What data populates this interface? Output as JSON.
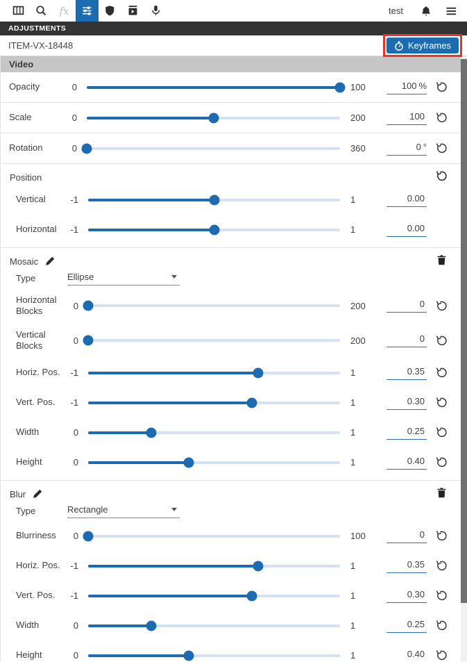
{
  "toolbar": {
    "user_label": "test",
    "effects_glyph": "fx"
  },
  "panel": {
    "title": "ADJUSTMENTS",
    "item_id": "ITEM-VX-18448",
    "keyframes_label": "Keyframes"
  },
  "video": {
    "title": "Video",
    "rows": [
      {
        "label": "Opacity",
        "min": "0",
        "max": "100",
        "value": "100",
        "unit": "%",
        "percent": 100
      },
      {
        "label": "Scale",
        "min": "0",
        "max": "200",
        "value": "100",
        "unit": "",
        "percent": 50
      },
      {
        "label": "Rotation",
        "min": "0",
        "max": "360",
        "value": "0",
        "unit": "°",
        "percent": 0
      }
    ]
  },
  "position": {
    "title": "Position",
    "rows": [
      {
        "label": "Vertical",
        "min": "-1",
        "max": "1",
        "value": "0.00",
        "unit": "",
        "percent": 50
      },
      {
        "label": "Horizontal",
        "min": "-1",
        "max": "1",
        "value": "0.00",
        "unit": "",
        "percent": 50
      }
    ]
  },
  "mosaic": {
    "title": "Mosaic",
    "type_label": "Type",
    "type_value": "Ellipse",
    "rows": [
      {
        "label": "Horizontal Blocks",
        "min": "0",
        "max": "200",
        "value": "0",
        "unit": "",
        "percent": 0
      },
      {
        "label": "Vertical Blocks",
        "min": "0",
        "max": "200",
        "value": "0",
        "unit": "",
        "percent": 0
      },
      {
        "label": "Horiz. Pos.",
        "min": "-1",
        "max": "1",
        "value": "0.35",
        "unit": "",
        "percent": 67.5
      },
      {
        "label": "Vert. Pos.",
        "min": "-1",
        "max": "1",
        "value": "0.30",
        "unit": "",
        "percent": 65
      },
      {
        "label": "Width",
        "min": "0",
        "max": "1",
        "value": "0.25",
        "unit": "",
        "percent": 25
      },
      {
        "label": "Height",
        "min": "0",
        "max": "1",
        "value": "0.40",
        "unit": "",
        "percent": 40
      }
    ]
  },
  "blur": {
    "title": "Blur",
    "type_label": "Type",
    "type_value": "Rectangle",
    "rows": [
      {
        "label": "Blurriness",
        "min": "0",
        "max": "100",
        "value": "0",
        "unit": "",
        "percent": 0
      },
      {
        "label": "Horiz. Pos.",
        "min": "-1",
        "max": "1",
        "value": "0.35",
        "unit": "",
        "percent": 67.5
      },
      {
        "label": "Vert. Pos.",
        "min": "-1",
        "max": "1",
        "value": "0.30",
        "unit": "",
        "percent": 65
      },
      {
        "label": "Width",
        "min": "0",
        "max": "1",
        "value": "0.25",
        "unit": "",
        "percent": 25
      },
      {
        "label": "Height",
        "min": "0",
        "max": "1",
        "value": "0.40",
        "unit": "",
        "percent": 40
      }
    ]
  },
  "colors": {
    "accent": "#1d6cb2",
    "track_light": "#d6e2f0",
    "annotation_red": "#e8332c",
    "section_bar_bg": "#c6c6c6",
    "titlebar_bg": "#333333"
  }
}
